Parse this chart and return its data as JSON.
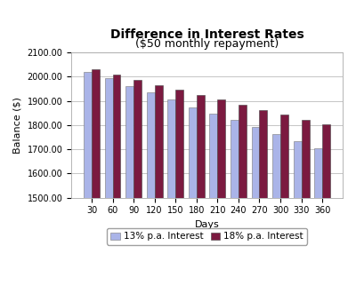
{
  "title": "Difference in Interest Rates",
  "subtitle": "($50 monthly repayment)",
  "xlabel": "Days",
  "ylabel": "Balance ($)",
  "categories": [
    30,
    60,
    90,
    120,
    150,
    180,
    210,
    240,
    270,
    300,
    330,
    360
  ],
  "series_13": [
    2020,
    1993,
    1963,
    1935,
    1905,
    1875,
    1848,
    1820,
    1793,
    1762,
    1733,
    1706
  ],
  "series_18": [
    2030,
    2008,
    1988,
    1965,
    1945,
    1925,
    1905,
    1883,
    1862,
    1842,
    1822,
    1805
  ],
  "color_13": "#aab4e8",
  "color_18": "#7b1a40",
  "ylim": [
    1500,
    2100
  ],
  "yticks": [
    1500,
    1600,
    1700,
    1800,
    1900,
    2000,
    2100
  ],
  "legend_13": "13% p.a. Interest",
  "legend_18": "18% p.a. Interest",
  "bg_color": "#ffffff",
  "plot_bg": "#ffffff",
  "title_fontsize": 10,
  "label_fontsize": 8,
  "tick_fontsize": 7
}
